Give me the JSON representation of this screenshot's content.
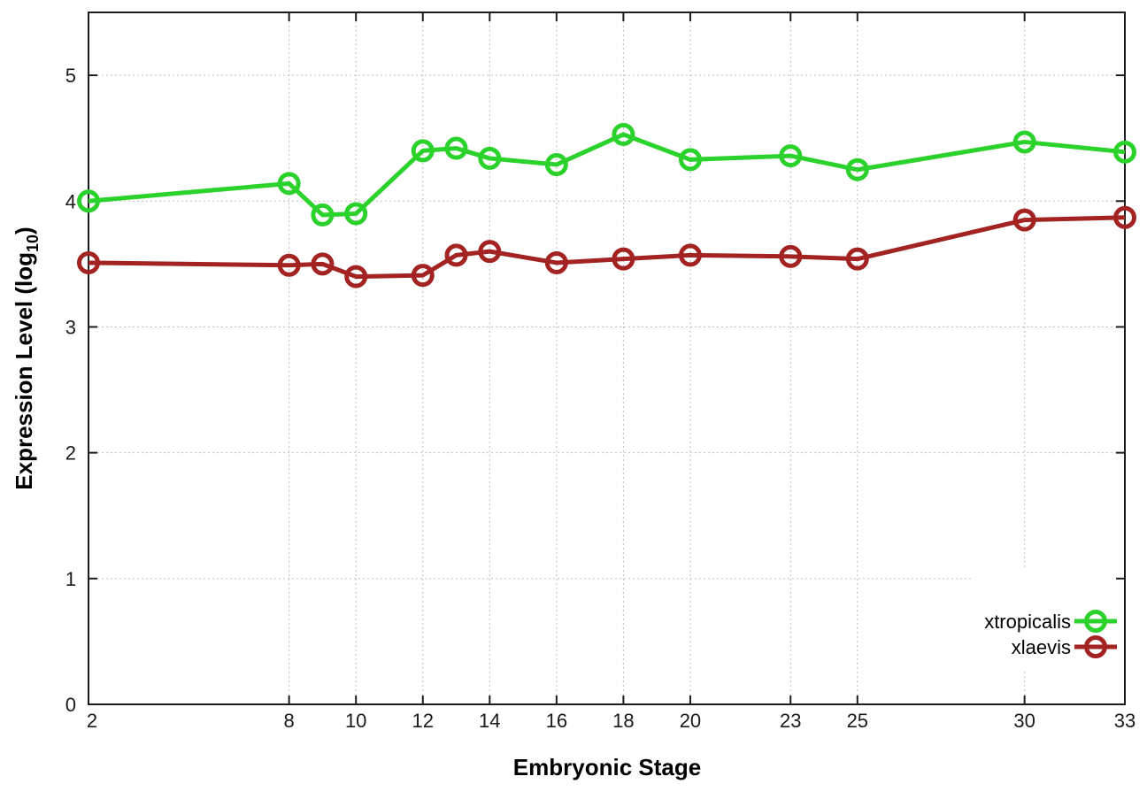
{
  "chart": {
    "y_title_main": "Expression Level (log",
    "y_title_sub": "10",
    "y_title_close": ")",
    "x_title": "Embryonic Stage",
    "background": "#ffffff",
    "border_color": "#1c1c1c",
    "grid_color": "#bdbdbd",
    "tick_label_color": "#1a1a1a"
  },
  "chart_data": {
    "type": "line",
    "title": "",
    "xlabel": "Embryonic Stage",
    "ylabel": "Expression Level (log10)",
    "xlim": [
      2,
      33
    ],
    "ylim": [
      0,
      5.5
    ],
    "grid": true,
    "legend_position": "bottom-right",
    "x": [
      2,
      8,
      9,
      10,
      12,
      13,
      14,
      16,
      18,
      20,
      23,
      25,
      30,
      33
    ],
    "x_tick_labels": [
      2,
      8,
      10,
      12,
      14,
      16,
      18,
      20,
      23,
      25,
      30,
      33
    ],
    "y_ticks": [
      0,
      1,
      2,
      3,
      4,
      5
    ],
    "series": [
      {
        "name": "xtropicalis",
        "color": "#2bd22b",
        "values": [
          4.0,
          4.14,
          3.89,
          3.9,
          4.4,
          4.42,
          4.34,
          4.29,
          4.53,
          4.33,
          4.36,
          4.25,
          4.47,
          4.39
        ]
      },
      {
        "name": "xlaevis",
        "color": "#a32323",
        "values": [
          3.51,
          3.49,
          3.5,
          3.4,
          3.41,
          3.57,
          3.6,
          3.51,
          3.54,
          3.57,
          3.56,
          3.54,
          3.85,
          3.87
        ]
      }
    ]
  }
}
